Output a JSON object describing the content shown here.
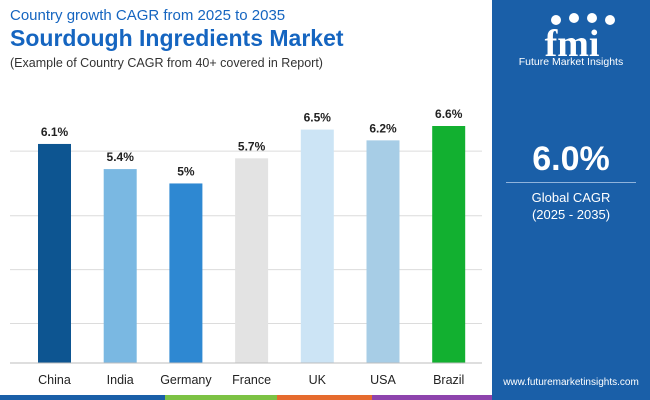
{
  "header": {
    "subtitle": "Country growth CAGR from 2025 to 2035",
    "title": "Sourdough Ingredients Market",
    "note": "(Example of Country CAGR from 40+ covered in Report)"
  },
  "side_panel": {
    "brand_name": "Future Market Insights",
    "logo_text": "fmi",
    "cagr_value": "6.0%",
    "cagr_label": "Global CAGR",
    "cagr_period": "(2025 - 2035)",
    "website": "www.futuremarketinsights.com"
  },
  "colors": {
    "title_blue": "#1565c0",
    "panel_blue": "#1a5fa8",
    "bottom_bar": [
      "#1a5fa8",
      "#7cc244",
      "#e66b2e",
      "#8e44ad"
    ]
  },
  "chart_data": {
    "type": "bar",
    "title": "Sourdough Ingredients Market",
    "xlabel": "",
    "ylabel": "",
    "ylim": [
      0,
      6.6
    ],
    "grid": true,
    "categories": [
      "China",
      "India",
      "Germany",
      "France",
      "UK",
      "USA",
      "Brazil"
    ],
    "values": [
      6.1,
      5.4,
      5.0,
      5.7,
      6.5,
      6.2,
      6.6
    ],
    "value_labels": [
      "6.1%",
      "5.4%",
      "5%",
      "5.7%",
      "6.5%",
      "6.2%",
      "6.6%"
    ],
    "bar_colors": [
      "#0d5591",
      "#7ab8e2",
      "#2e88d2",
      "#e3e3e3",
      "#cce4f5",
      "#a7cde6",
      "#12b030"
    ]
  }
}
